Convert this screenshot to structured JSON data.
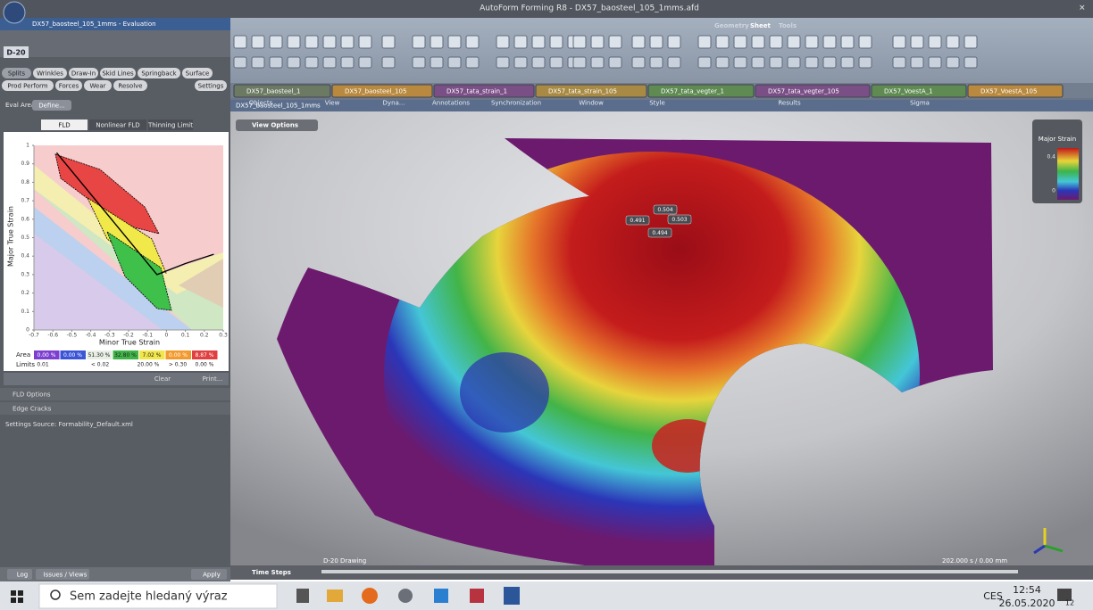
{
  "window": {
    "title": "AutoForm Forming R8 - DX57_baosteel_105_1mms.afd",
    "file": "DX57_baosteel_105_1mms - Evaluation"
  },
  "ribbon": {
    "tabs": [
      "Geometry",
      "Sheet",
      "Tools"
    ],
    "groups": [
      "Objects",
      "View",
      "Dyna...",
      "Annotations",
      "Synchronization",
      "Window",
      "Style",
      "Results",
      "Sigma"
    ]
  },
  "document_tabs": [
    "DX57_baosteel_1",
    "DX57_baosteel_105",
    "DX57_tata_strain_1",
    "DX57_tata_strain_105",
    "DX57_tata_vegter_1",
    "DX57_tata_vegter_105",
    "DX57_VoestA_1",
    "DX57_VoestA_105"
  ],
  "left_panel": {
    "step": "D-20",
    "eval_buttons_1": [
      "Splits",
      "Wrinkles",
      "Draw-In",
      "Skid Lines",
      "Springback",
      "Surface"
    ],
    "eval_buttons_2": [
      "Prod Perform",
      "Forces",
      "Wear",
      "Resolve"
    ],
    "settings": "Settings",
    "eval_area": "Eval Area",
    "define": "Define...",
    "fld_tabs": [
      "FLD",
      "Nonlinear FLD",
      "Thinning Limit"
    ],
    "area_label": "Area",
    "area_values": [
      "0.00 %",
      "0.00 %",
      "51.30 %",
      "32.80 %",
      "7.02 %",
      "0.00 %",
      "8.87 %"
    ],
    "limits_label": "Limits",
    "limits_values": [
      "0.01",
      "< 0.02",
      "20.00 %",
      "> 0.30",
      "0.00 %"
    ],
    "clear": "Clear",
    "print": "Print...",
    "sections": [
      "FLD Options",
      "Edge Cracks"
    ],
    "settings_source": "Settings Source: Formability_Default.xml",
    "bottom": [
      "Log",
      "Issues / Views",
      "Apply"
    ]
  },
  "chart_data": {
    "type": "line",
    "x_label": "Minor True Strain",
    "y_label": "Major True Strain",
    "x": [
      -0.58,
      -0.05,
      0.1,
      0.25
    ],
    "values": [
      0.96,
      0.3,
      0.36,
      0.41
    ],
    "color": "#000000",
    "xlim": [
      -0.7,
      0.3
    ],
    "ylim": [
      0,
      1
    ],
    "xticks": [
      -0.7,
      -0.6,
      -0.5,
      -0.4,
      -0.3,
      -0.2,
      -0.1,
      0,
      0.1,
      0.2,
      0.3
    ],
    "yticks": [
      0,
      0.1,
      0.2,
      0.3,
      0.4,
      0.5,
      0.6,
      0.7,
      0.8,
      0.9,
      1
    ]
  },
  "viewport": {
    "title": "DX57_baosteel_105_1mms",
    "view_options": "View Options",
    "legend_title": "Major Strain",
    "legend_ticks": [
      0.4,
      0
    ],
    "probes": [
      0.504,
      0.491,
      0.503,
      0.494
    ],
    "stage": "D-20 Drawing",
    "time_steps": "Time Steps",
    "time": "202.000 s / 0.00 mm"
  },
  "taskbar": {
    "search": "Sem zadejte hledaný výraz",
    "language": "CES",
    "time": "12:54",
    "date": "26.05.2020",
    "notifications": 12
  }
}
